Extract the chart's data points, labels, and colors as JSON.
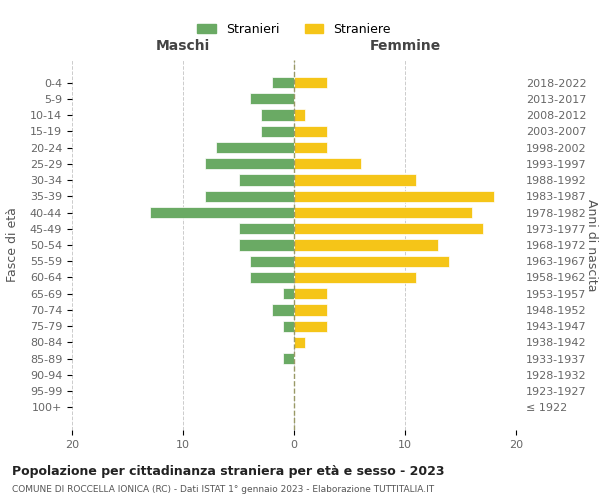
{
  "age_groups": [
    "100+",
    "95-99",
    "90-94",
    "85-89",
    "80-84",
    "75-79",
    "70-74",
    "65-69",
    "60-64",
    "55-59",
    "50-54",
    "45-49",
    "40-44",
    "35-39",
    "30-34",
    "25-29",
    "20-24",
    "15-19",
    "10-14",
    "5-9",
    "0-4"
  ],
  "birth_years": [
    "≤ 1922",
    "1923-1927",
    "1928-1932",
    "1933-1937",
    "1938-1942",
    "1943-1947",
    "1948-1952",
    "1953-1957",
    "1958-1962",
    "1963-1967",
    "1968-1972",
    "1973-1977",
    "1978-1982",
    "1983-1987",
    "1988-1992",
    "1993-1997",
    "1998-2002",
    "2003-2007",
    "2008-2012",
    "2013-2017",
    "2018-2022"
  ],
  "maschi": [
    0,
    0,
    0,
    1,
    0,
    1,
    2,
    1,
    4,
    4,
    5,
    5,
    13,
    8,
    5,
    8,
    7,
    3,
    3,
    4,
    2
  ],
  "femmine": [
    0,
    0,
    0,
    0,
    1,
    3,
    3,
    3,
    11,
    14,
    13,
    17,
    16,
    18,
    11,
    6,
    3,
    3,
    1,
    0,
    3
  ],
  "maschi_color": "#6aaa64",
  "femmine_color": "#f5c518",
  "title": "Popolazione per cittadinanza straniera per età e sesso - 2023",
  "subtitle": "COMUNE DI ROCCELLA IONICA (RC) - Dati ISTAT 1° gennaio 2023 - Elaborazione TUTTITALIA.IT",
  "ylabel_left": "Fasce di età",
  "ylabel_right": "Anni di nascita",
  "xlabel_maschi": "Maschi",
  "xlabel_femmine": "Femmine",
  "legend_maschi": "Stranieri",
  "legend_femmine": "Straniere",
  "xlim": 20,
  "background_color": "#ffffff",
  "grid_color": "#cccccc"
}
